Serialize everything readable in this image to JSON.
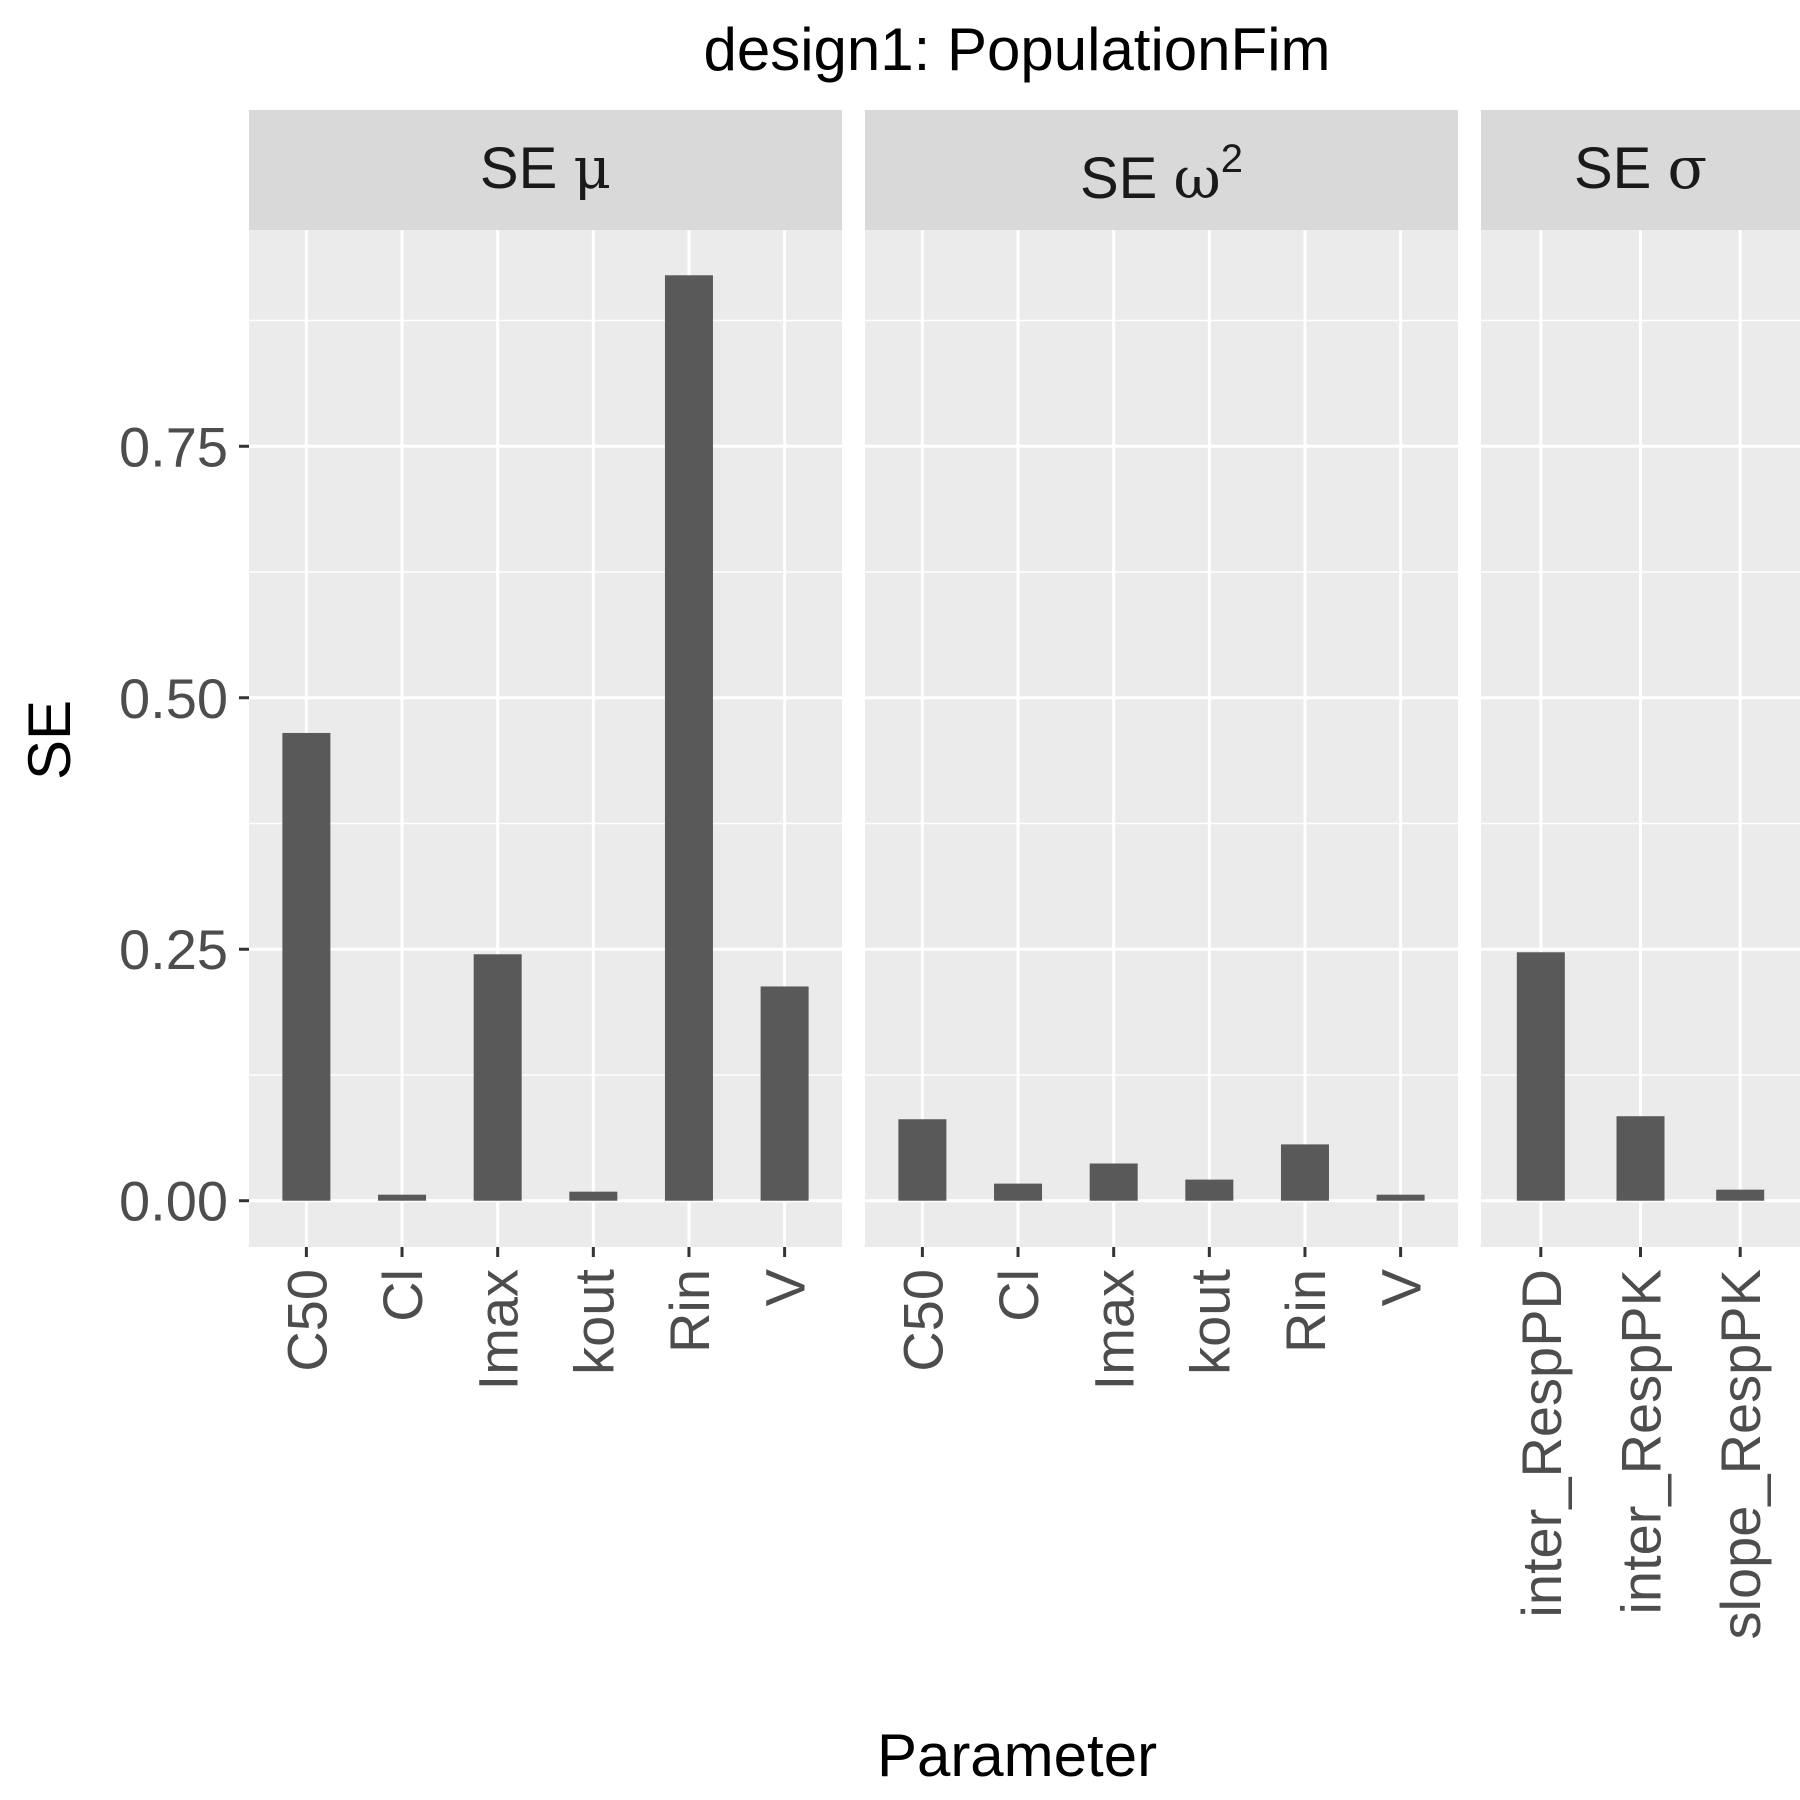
{
  "chart_data": {
    "type": "bar",
    "title": "design1: PopulationFim",
    "xlabel": "Parameter",
    "ylabel": "SE",
    "ylim": [
      -0.046,
      0.965
    ],
    "yticks": [
      "0.00",
      "0.25",
      "0.50",
      "0.75"
    ],
    "yticks_values": [
      0,
      0.25,
      0.5,
      0.75
    ],
    "grid": true,
    "bar_color": "#595959",
    "panel_background": "#ebebeb",
    "strip_background": "#d9d9d9",
    "facets": [
      {
        "strip_prefix": "SE ",
        "strip_symbol": "μ",
        "strip_superscript": "",
        "categories": [
          "C50",
          "Cl",
          "Imax",
          "kout",
          "Rin",
          "V"
        ],
        "values": [
          0.465,
          0.006,
          0.245,
          0.009,
          0.92,
          0.213
        ]
      },
      {
        "strip_prefix": "SE ",
        "strip_symbol": "ω",
        "strip_superscript": "2",
        "categories": [
          "C50",
          "Cl",
          "Imax",
          "kout",
          "Rin",
          "V"
        ],
        "values": [
          0.081,
          0.017,
          0.037,
          0.021,
          0.056,
          0.006
        ]
      },
      {
        "strip_prefix": "SE ",
        "strip_symbol": "σ",
        "strip_superscript": "",
        "categories": [
          "inter_RespPD",
          "inter_RespPK",
          "slope_RespPK"
        ],
        "values": [
          0.247,
          0.084,
          0.011
        ]
      }
    ]
  }
}
